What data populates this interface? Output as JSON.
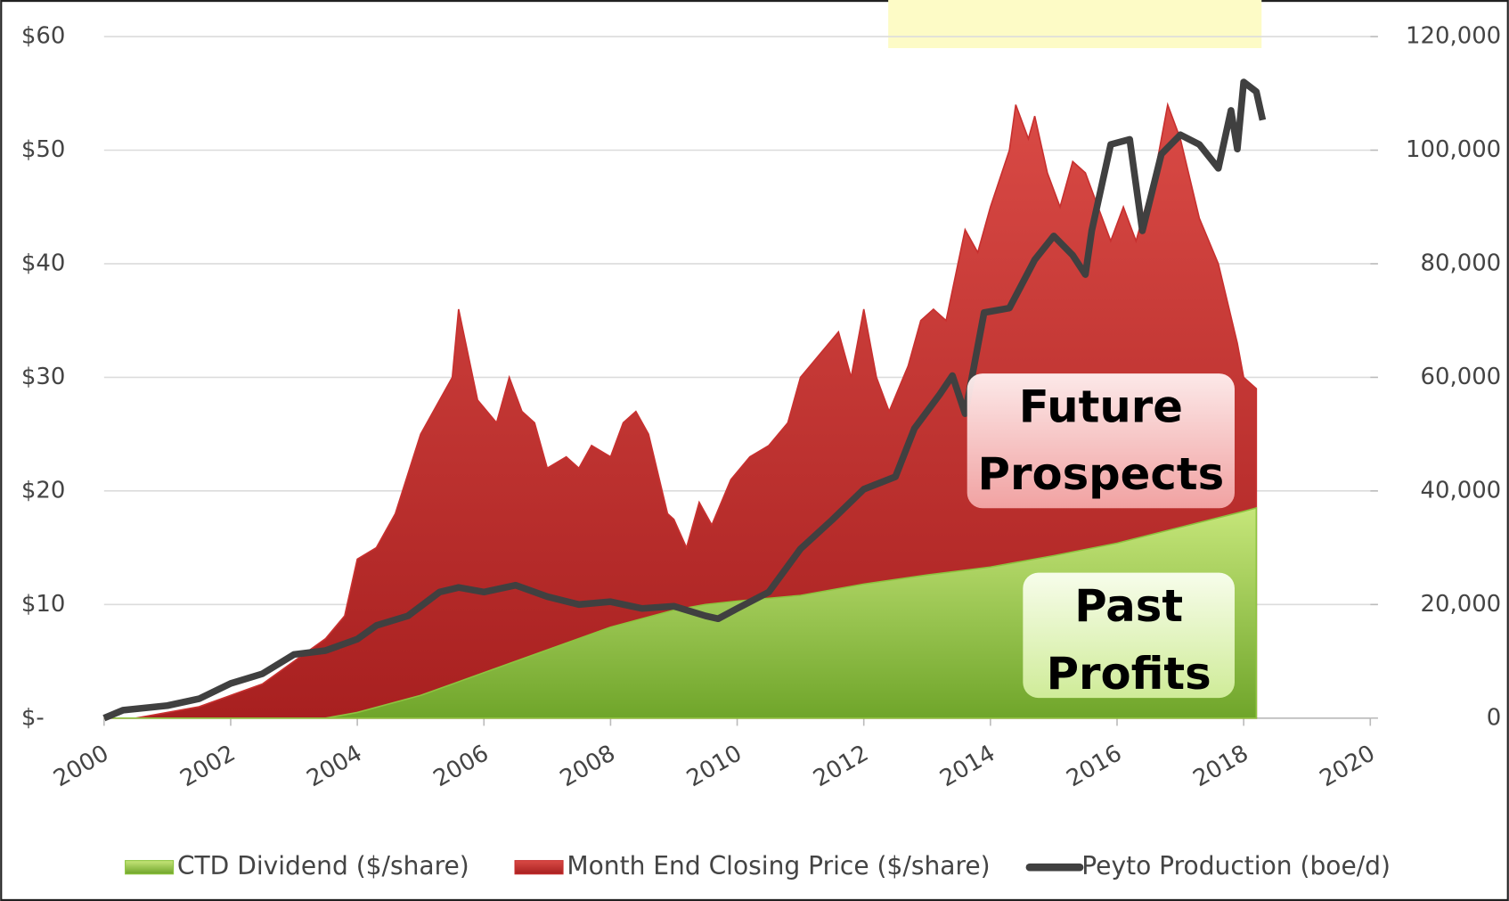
{
  "chart_data": {
    "type": "area",
    "xlim": [
      2000,
      2020
    ],
    "xticks": [
      2000,
      2002,
      2004,
      2006,
      2008,
      2010,
      2012,
      2014,
      2016,
      2018,
      2020
    ],
    "ylim": [
      0,
      60
    ],
    "yticks": [
      {
        "value": 0,
        "label": "$-"
      },
      {
        "value": 10,
        "label": "$10"
      },
      {
        "value": 20,
        "label": "$20"
      },
      {
        "value": 30,
        "label": "$30"
      },
      {
        "value": 40,
        "label": "$40"
      },
      {
        "value": 50,
        "label": "$50"
      },
      {
        "value": 60,
        "label": "$60"
      }
    ],
    "y2lim": [
      0,
      120000
    ],
    "y2ticks": [
      0,
      {
        "value": 20000,
        "label": "20,000"
      },
      {
        "value": 40000,
        "label": "40,000"
      },
      {
        "value": 60000,
        "label": "60,000"
      },
      {
        "value": 80000,
        "label": "80,000"
      },
      {
        "value": 100000,
        "label": "100,000"
      },
      {
        "value": 120000,
        "label": "120,000"
      }
    ],
    "grid": true,
    "legend": "bottom",
    "annotations": [
      [
        "Future",
        "Prospects"
      ],
      [
        "Past",
        "Profits"
      ]
    ],
    "series": [
      {
        "name": "CTD Dividend ($/share)",
        "color": "#8dc43f",
        "kind": "area",
        "x": [
          2000,
          2003.5,
          2004,
          2005,
          2006,
          2007,
          2008,
          2009,
          2009.5,
          2010,
          2011,
          2012,
          2013,
          2014,
          2015,
          2016,
          2017,
          2018,
          2018.2
        ],
        "values": [
          0,
          0,
          0.5,
          2,
          4,
          6,
          8,
          9.5,
          10,
          10.3,
          10.8,
          11.8,
          12.6,
          13.3,
          14.3,
          15.4,
          16.8,
          18.2,
          18.5
        ]
      },
      {
        "name": "Month End Closing Price ($/share)",
        "color": "#c8302f",
        "kind": "area",
        "x": [
          2000,
          2000.5,
          2001,
          2001.5,
          2002,
          2002.5,
          2003,
          2003.5,
          2003.8,
          2004,
          2004.3,
          2004.6,
          2005,
          2005.3,
          2005.5,
          2005.6,
          2005.9,
          2006.2,
          2006.4,
          2006.6,
          2006.8,
          2007,
          2007.3,
          2007.5,
          2007.7,
          2008,
          2008.2,
          2008.4,
          2008.6,
          2008.9,
          2009,
          2009.2,
          2009.4,
          2009.6,
          2009.9,
          2010.2,
          2010.5,
          2010.8,
          2011,
          2011.3,
          2011.6,
          2011.8,
          2012,
          2012.2,
          2012.4,
          2012.7,
          2012.9,
          2013.1,
          2013.3,
          2013.6,
          2013.8,
          2014,
          2014.3,
          2014.4,
          2014.6,
          2014.7,
          2014.9,
          2015.1,
          2015.3,
          2015.5,
          2015.7,
          2015.9,
          2016.1,
          2016.3,
          2016.6,
          2016.8,
          2017,
          2017.3,
          2017.6,
          2017.9,
          2018,
          2018.2
        ],
        "values": [
          0,
          0,
          0.5,
          1,
          2,
          3,
          5,
          7,
          9,
          14,
          15,
          18,
          25,
          28,
          30,
          36,
          28,
          26,
          30,
          27,
          26,
          22,
          23,
          22,
          24,
          23,
          26,
          27,
          25,
          18,
          17.5,
          15,
          19,
          17,
          21,
          23,
          24,
          26,
          30,
          32,
          34,
          30,
          36,
          30,
          27,
          31,
          35,
          36,
          35,
          43,
          41,
          45,
          50,
          54,
          51,
          53,
          48,
          45,
          49,
          48,
          45,
          42,
          45,
          42,
          48,
          54,
          51,
          44,
          40,
          33,
          30,
          29
        ]
      },
      {
        "name": "Peyto Production (boe/d)",
        "color": "#404040",
        "kind": "line",
        "axis": "y2",
        "x": [
          2000,
          2000.3,
          2001,
          2001.5,
          2002,
          2002.5,
          2003,
          2003.5,
          2004,
          2004.3,
          2004.8,
          2005.3,
          2005.6,
          2006,
          2006.5,
          2007,
          2007.5,
          2008,
          2008.5,
          2009,
          2009.5,
          2009.7,
          2010,
          2010.5,
          2011,
          2011.5,
          2012,
          2012.5,
          2012.8,
          2013.2,
          2013.4,
          2013.6,
          2013.9,
          2014.3,
          2014.7,
          2015,
          2015.3,
          2015.5,
          2015.6,
          2015.9,
          2016.2,
          2016.4,
          2016.7,
          2017,
          2017.3,
          2017.6,
          2017.8,
          2017.9,
          2018,
          2018.2,
          2018.3
        ],
        "values": [
          0,
          1400,
          2200,
          3400,
          6100,
          7800,
          11200,
          11900,
          13900,
          16300,
          18000,
          22200,
          23000,
          22200,
          23400,
          21400,
          20000,
          20500,
          19300,
          19700,
          18000,
          17500,
          19300,
          22200,
          29800,
          34900,
          40300,
          42500,
          51000,
          57000,
          60300,
          53600,
          71400,
          72200,
          80700,
          84900,
          81500,
          78100,
          85800,
          101000,
          101900,
          85800,
          99300,
          102700,
          101000,
          96800,
          107000,
          100200,
          112000,
          110300,
          105300
        ]
      }
    ]
  }
}
